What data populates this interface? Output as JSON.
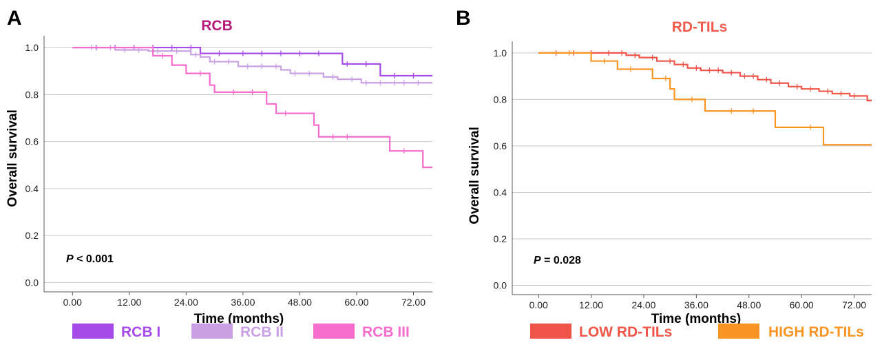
{
  "chart_data": [
    {
      "type": "line",
      "panel": "A",
      "title": "RCB",
      "title_color": "#b5197a",
      "xlabel": "Time (months)",
      "ylabel": "Overall survival",
      "xlim": [
        -6,
        76
      ],
      "ylim": [
        -0.04,
        1.05
      ],
      "x_ticks": [
        0,
        12,
        24,
        36,
        48,
        60,
        72
      ],
      "x_tick_labels": [
        "0.00",
        "12.00",
        "24.00",
        "36.00",
        "48.00",
        "60.00",
        "72.00"
      ],
      "y_ticks": [
        0,
        0.2,
        0.4,
        0.6,
        0.8,
        1.0
      ],
      "y_tick_labels": [
        "0.0",
        "0.2",
        "0.4",
        "0.6",
        "0.8",
        "1.0"
      ],
      "grid": true,
      "annotation": {
        "p_label": "P",
        "p_rest": " < 0.001"
      },
      "series": [
        {
          "name": "RCB I",
          "color": "#a64be8",
          "steps": [
            [
              0,
              1.0
            ],
            [
              27,
              0.975
            ],
            [
              57,
              0.93
            ],
            [
              65,
              0.88
            ],
            [
              76,
              0.88
            ]
          ],
          "censor": [
            5,
            9,
            13,
            17,
            21,
            25,
            31,
            36,
            40,
            44,
            48,
            52,
            58,
            62,
            68,
            72
          ]
        },
        {
          "name": "RCB II",
          "color": "#c9a0e4",
          "steps": [
            [
              0,
              1.0
            ],
            [
              9,
              0.99
            ],
            [
              16,
              0.985
            ],
            [
              25,
              0.97
            ],
            [
              27,
              0.96
            ],
            [
              29,
              0.94
            ],
            [
              35,
              0.92
            ],
            [
              44,
              0.905
            ],
            [
              46,
              0.89
            ],
            [
              53,
              0.875
            ],
            [
              56,
              0.865
            ],
            [
              61,
              0.85
            ],
            [
              76,
              0.85
            ]
          ],
          "censor": [
            4,
            8,
            11,
            14,
            18,
            22,
            26,
            30,
            33,
            37,
            40,
            43,
            47,
            50,
            55,
            59,
            62,
            65,
            68,
            70,
            73
          ]
        },
        {
          "name": "RCB III",
          "color": "#f56ccc",
          "steps": [
            [
              0,
              1.0
            ],
            [
              17,
              0.965
            ],
            [
              21,
              0.925
            ],
            [
              24,
              0.89
            ],
            [
              29,
              0.84
            ],
            [
              30,
              0.81
            ],
            [
              41,
              0.76
            ],
            [
              43,
              0.72
            ],
            [
              51,
              0.67
            ],
            [
              52,
              0.62
            ],
            [
              67,
              0.56
            ],
            [
              74,
              0.49
            ],
            [
              76,
              0.49
            ]
          ],
          "censor": [
            19,
            27,
            34,
            38,
            45,
            55,
            58,
            70
          ]
        }
      ],
      "legend": [
        "RCB I",
        "RCB II",
        "RCB III"
      ]
    },
    {
      "type": "line",
      "panel": "B",
      "title": "RD-TILs",
      "title_color": "#f05a4a",
      "xlabel": "Time (months)",
      "ylabel": "Overall survival",
      "xlim": [
        -6,
        76
      ],
      "ylim": [
        -0.04,
        1.05
      ],
      "x_ticks": [
        0,
        12,
        24,
        36,
        48,
        60,
        72
      ],
      "x_tick_labels": [
        "0.00",
        "12.00",
        "24.00",
        "36.00",
        "48.00",
        "60.00",
        "72.00"
      ],
      "y_ticks": [
        0,
        0.2,
        0.4,
        0.6,
        0.8,
        1.0
      ],
      "y_tick_labels": [
        "0.0",
        "0.2",
        "0.4",
        "0.6",
        "0.8",
        "1.0"
      ],
      "grid": true,
      "annotation": {
        "p_label": "P",
        "p_rest": " = 0.028"
      },
      "series": [
        {
          "name": "LOW RD-TILs",
          "color": "#ef5548",
          "steps": [
            [
              0,
              1.0
            ],
            [
              20,
              0.99
            ],
            [
              23,
              0.98
            ],
            [
              27,
              0.965
            ],
            [
              31,
              0.95
            ],
            [
              34,
              0.935
            ],
            [
              37,
              0.925
            ],
            [
              42,
              0.915
            ],
            [
              46,
              0.9
            ],
            [
              50,
              0.885
            ],
            [
              53,
              0.87
            ],
            [
              57,
              0.855
            ],
            [
              60,
              0.845
            ],
            [
              64,
              0.835
            ],
            [
              67,
              0.825
            ],
            [
              71,
              0.815
            ],
            [
              75,
              0.795
            ],
            [
              76,
              0.795
            ]
          ],
          "censor": [
            4,
            8,
            12,
            16,
            19,
            22,
            26,
            30,
            33,
            36,
            39,
            41,
            44,
            47,
            49,
            52,
            55,
            59,
            62,
            66,
            69,
            72
          ]
        },
        {
          "name": "HIGH RD-TILs",
          "color": "#f99523",
          "steps": [
            [
              0,
              1.0
            ],
            [
              12,
              0.965
            ],
            [
              18,
              0.93
            ],
            [
              26,
              0.89
            ],
            [
              30,
              0.845
            ],
            [
              31,
              0.8
            ],
            [
              38,
              0.75
            ],
            [
              54,
              0.68
            ],
            [
              65,
              0.605
            ],
            [
              76,
              0.605
            ]
          ],
          "censor": [
            7,
            15,
            21,
            29,
            35,
            44,
            49,
            62
          ]
        }
      ],
      "legend": [
        "LOW RD-TILs",
        "HIGH RD-TILs"
      ]
    }
  ]
}
